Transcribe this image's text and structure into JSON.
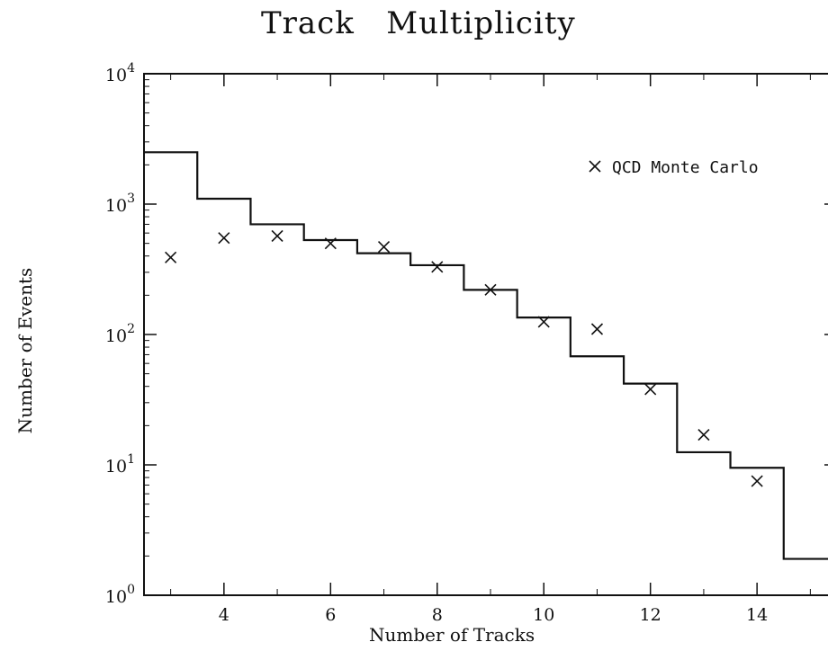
{
  "chart_data": {
    "type": "line",
    "title": "Track   Multiplicity",
    "xlabel": "Number of Tracks",
    "ylabel": "Number of Events",
    "xlim": [
      2.5,
      15.5
    ],
    "ylim": [
      1,
      10000
    ],
    "yscale": "log",
    "x_ticks": [
      4,
      6,
      8,
      10,
      12,
      14
    ],
    "y_ticks": [
      {
        "value": 1,
        "base": "10",
        "exp": "0"
      },
      {
        "value": 10,
        "base": "10",
        "exp": "1"
      },
      {
        "value": 100,
        "base": "10",
        "exp": "2"
      },
      {
        "value": 1000,
        "base": "10",
        "exp": "3"
      },
      {
        "value": 10000,
        "base": "10",
        "exp": "4"
      }
    ],
    "legend_position": "top-right",
    "series": [
      {
        "name": "",
        "style": "histogram-step",
        "x": [
          3,
          4,
          5,
          6,
          7,
          8,
          9,
          10,
          11,
          12,
          13,
          14,
          15
        ],
        "values": [
          2500,
          1100,
          700,
          530,
          420,
          340,
          220,
          135,
          68,
          42,
          12.5,
          9.5,
          1.9
        ]
      },
      {
        "name": "QCD Monte Carlo",
        "style": "marker-x",
        "x": [
          3,
          4,
          5,
          6,
          7,
          8,
          9,
          10,
          11,
          12,
          13,
          14
        ],
        "values": [
          390,
          550,
          570,
          500,
          470,
          330,
          220,
          125,
          110,
          38,
          17,
          7.5
        ]
      }
    ]
  }
}
